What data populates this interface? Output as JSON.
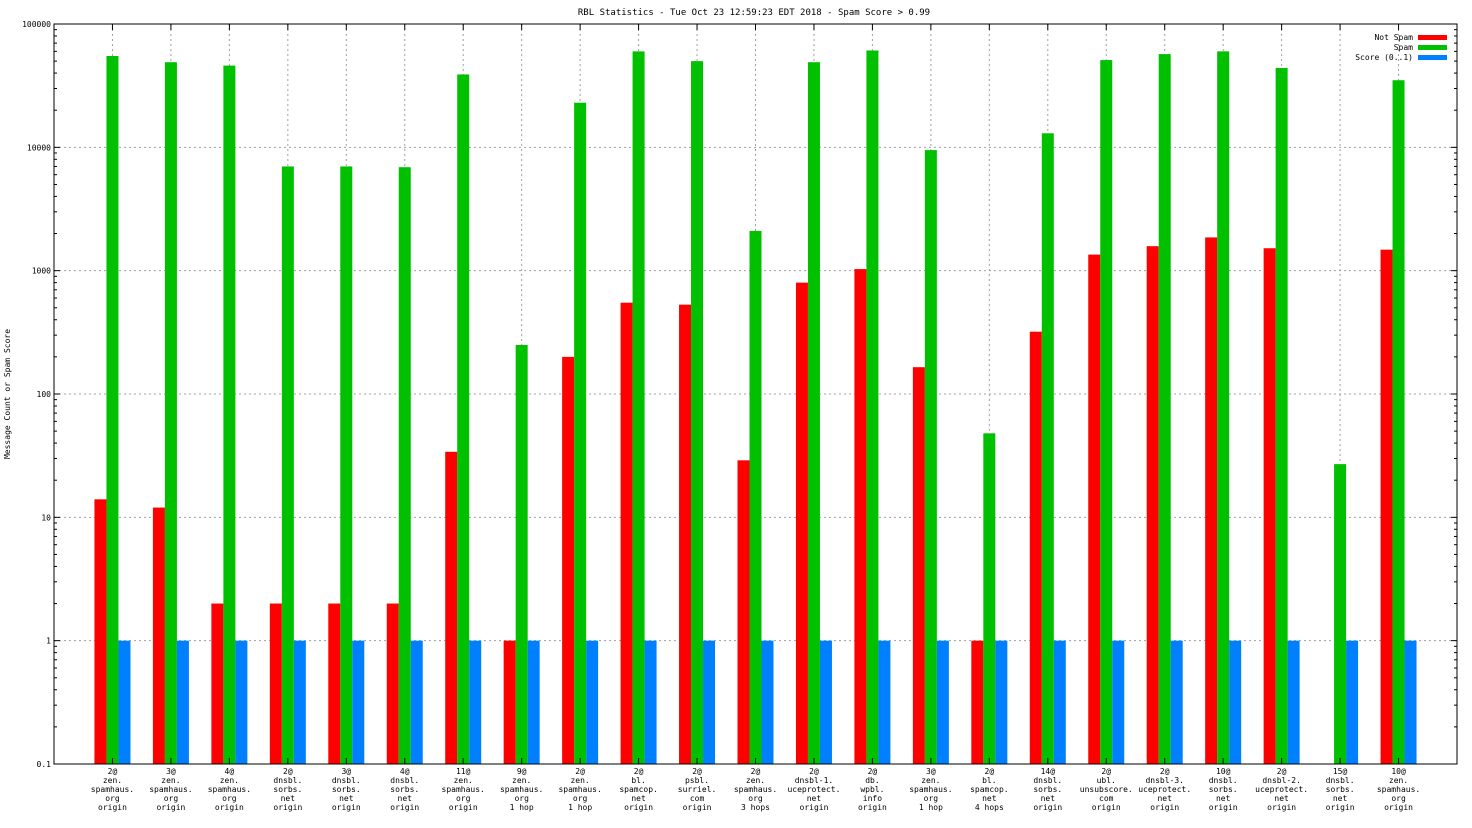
{
  "chart_data": {
    "type": "bar",
    "title": "RBL Statistics - Tue Oct 23 12:59:23 EDT 2018 - Spam Score > 0.99",
    "xlabel": "",
    "ylabel": "Message Count or Spam Score",
    "yscale": "log",
    "ylim": [
      0.1,
      100000
    ],
    "yticks": [
      "0.1",
      "1",
      "10",
      "100",
      "1000",
      "10000",
      "100000"
    ],
    "grid": true,
    "legend_position": "top-right",
    "categories": [
      [
        "2@",
        "zen.",
        "spamhaus.",
        "org",
        "origin"
      ],
      [
        "3@",
        "zen.",
        "spamhaus.",
        "org",
        "origin"
      ],
      [
        "4@",
        "zen.",
        "spamhaus.",
        "org",
        "origin"
      ],
      [
        "2@",
        "dnsbl.",
        "sorbs.",
        "net",
        "origin"
      ],
      [
        "3@",
        "dnsbl.",
        "sorbs.",
        "net",
        "origin"
      ],
      [
        "4@",
        "dnsbl.",
        "sorbs.",
        "net",
        "origin"
      ],
      [
        "11@",
        "zen.",
        "spamhaus.",
        "org",
        "origin"
      ],
      [
        "9@",
        "zen.",
        "spamhaus.",
        "org",
        "1 hop"
      ],
      [
        "2@",
        "zen.",
        "spamhaus.",
        "org",
        "1 hop"
      ],
      [
        "2@",
        "bl.",
        "spamcop.",
        "net",
        "origin"
      ],
      [
        "2@",
        "psbl.",
        "surriel.",
        "com",
        "origin"
      ],
      [
        "2@",
        "zen.",
        "spamhaus.",
        "org",
        "3 hops"
      ],
      [
        "2@",
        "dnsbl-1.",
        "uceprotect.",
        "net",
        "origin"
      ],
      [
        "2@",
        "db.",
        "wpbl.",
        "info",
        "origin"
      ],
      [
        "3@",
        "zen.",
        "spamhaus.",
        "org",
        "1 hop"
      ],
      [
        "2@",
        "bl.",
        "spamcop.",
        "net",
        "4 hops"
      ],
      [
        "14@",
        "dnsbl.",
        "sorbs.",
        "net",
        "origin"
      ],
      [
        "2@",
        "ubl.",
        "unsubscore.",
        "com",
        "origin"
      ],
      [
        "2@",
        "dnsbl-3.",
        "uceprotect.",
        "net",
        "origin"
      ],
      [
        "10@",
        "dnsbl.",
        "sorbs.",
        "net",
        "origin"
      ],
      [
        "2@",
        "dnsbl-2.",
        "uceprotect.",
        "net",
        "origin"
      ],
      [
        "15@",
        "dnsbl.",
        "sorbs.",
        "net",
        "origin"
      ],
      [
        "10@",
        "zen.",
        "spamhaus.",
        "org",
        "origin"
      ]
    ],
    "series": [
      {
        "name": "Not Spam",
        "color": "#ff0000",
        "values": [
          14,
          12,
          2,
          2,
          2,
          2,
          34,
          1,
          200,
          550,
          530,
          29,
          800,
          1030,
          165,
          1,
          320,
          1350,
          1580,
          1860,
          1520,
          null,
          1480
        ]
      },
      {
        "name": "Spam",
        "color": "#00c000",
        "values": [
          55000,
          49000,
          46000,
          7000,
          7000,
          6900,
          39000,
          250,
          23000,
          60000,
          50000,
          2100,
          49000,
          61000,
          9500,
          48,
          13000,
          51000,
          57000,
          60000,
          44000,
          27,
          35000
        ]
      },
      {
        "name": "Score (0..1)",
        "color": "#0080ff",
        "values": [
          1,
          1,
          1,
          1,
          1,
          1,
          1,
          1,
          1,
          1,
          1,
          1,
          1,
          1,
          1,
          1,
          1,
          1,
          1,
          1,
          1,
          1,
          1
        ]
      }
    ]
  }
}
